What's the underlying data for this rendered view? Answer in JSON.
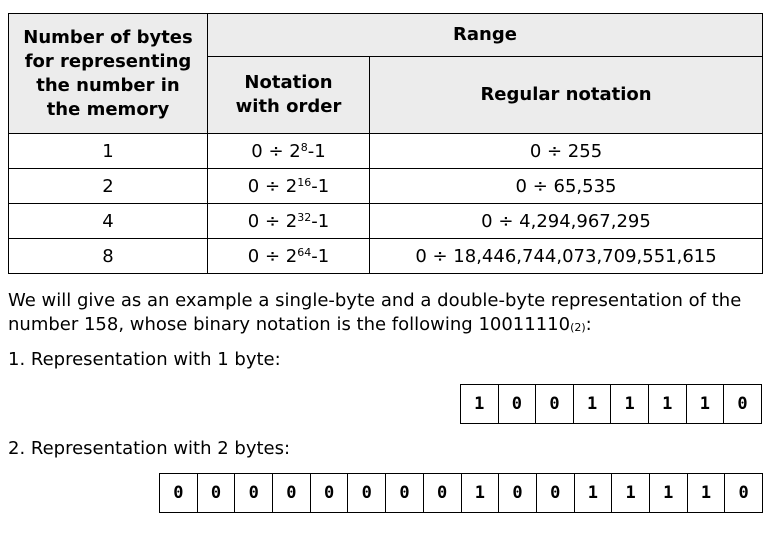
{
  "table": {
    "header_bytes": "Number of bytes for representing the number in the memory",
    "header_range": "Range",
    "header_order": "Notation with order",
    "header_regular": "Regular notation",
    "rows": [
      {
        "bytes": "1",
        "base": "0 ÷ 2",
        "exp": "8",
        "tail": "-1",
        "regular": "0 ÷ 255"
      },
      {
        "bytes": "2",
        "base": "0 ÷ 2",
        "exp": "16",
        "tail": "-1",
        "regular": "0 ÷ 65,535"
      },
      {
        "bytes": "4",
        "base": "0 ÷ 2",
        "exp": "32",
        "tail": "-1",
        "regular": "0 ÷ 4,294,967,295"
      },
      {
        "bytes": "8",
        "base": "0 ÷ 2",
        "exp": "64",
        "tail": "-1",
        "regular": "0 ÷ 18,446,744,073,709,551,615"
      }
    ]
  },
  "example": {
    "text": "We will give as an example a single-byte and a double-byte representation of the number 158, whose binary notation is the following ",
    "binary": "10011110",
    "radix": "(2)",
    "suffix": ":"
  },
  "rep1": {
    "label": "1. Representation with 1 byte:",
    "bits": [
      "1",
      "0",
      "0",
      "1",
      "1",
      "1",
      "1",
      "0"
    ]
  },
  "rep2": {
    "label": "2. Representation with 2 bytes:",
    "bits": [
      "0",
      "0",
      "0",
      "0",
      "0",
      "0",
      "0",
      "0",
      "1",
      "0",
      "0",
      "1",
      "1",
      "1",
      "1",
      "0"
    ]
  }
}
